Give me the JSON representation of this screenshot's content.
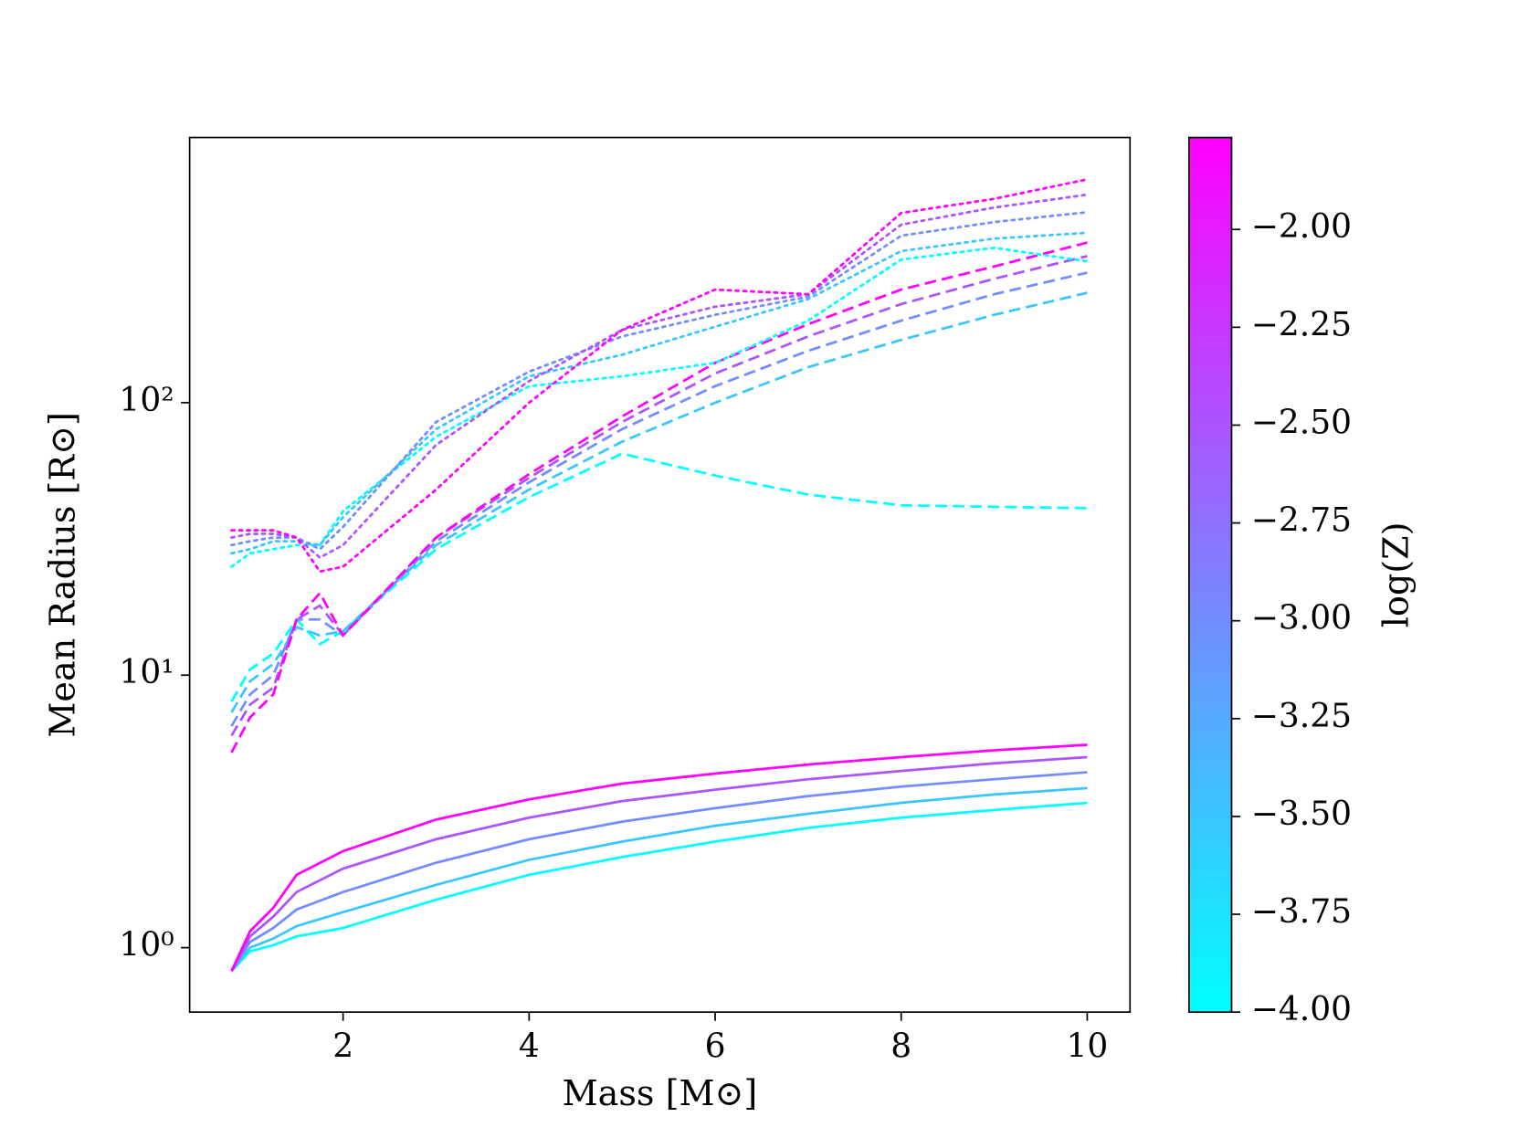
{
  "chart_data": {
    "type": "line",
    "xlabel": "Mass [M⊙]",
    "ylabel": "Mean Radius [R⊙]",
    "xlim": [
      0.35,
      10.46
    ],
    "xticks": [
      2,
      4,
      6,
      8,
      10
    ],
    "ylim": [
      0.58,
      940
    ],
    "yscale": "log",
    "yticks": [
      {
        "value": 1,
        "label": "10⁰"
      },
      {
        "value": 10,
        "label": "10¹"
      },
      {
        "value": 100,
        "label": "10²"
      }
    ],
    "grid": false,
    "colorbar": {
      "label": "log(Z)",
      "lim": [
        -4.0,
        -1.765
      ],
      "cmap": [
        "#00ffff",
        "#ff00ff"
      ],
      "ticks": [
        {
          "value": -4.0,
          "label": "−4.00"
        },
        {
          "value": -3.75,
          "label": "−3.75"
        },
        {
          "value": -3.5,
          "label": "−3.50"
        },
        {
          "value": -3.25,
          "label": "−3.25"
        },
        {
          "value": -3.0,
          "label": "−3.00"
        },
        {
          "value": -2.75,
          "label": "−2.75"
        },
        {
          "value": -2.5,
          "label": "−2.50"
        },
        {
          "value": -2.25,
          "label": "−2.25"
        },
        {
          "value": -2.0,
          "label": "−2.00"
        }
      ]
    },
    "series": [
      {
        "color": "#00ffff",
        "linestyle": "solid",
        "x": [
          0.8,
          1,
          1.25,
          1.5,
          2,
          3,
          4,
          5,
          6,
          7,
          8,
          9,
          10
        ],
        "values": [
          0.82,
          0.97,
          1.02,
          1.1,
          1.18,
          1.5,
          1.85,
          2.15,
          2.45,
          2.75,
          3.0,
          3.2,
          3.4
        ]
      },
      {
        "color": "#39c6ff",
        "linestyle": "solid",
        "x": [
          0.8,
          1,
          1.25,
          1.5,
          2,
          3,
          4,
          5,
          6,
          7,
          8,
          9,
          10
        ],
        "values": [
          0.82,
          1.0,
          1.08,
          1.2,
          1.35,
          1.7,
          2.1,
          2.45,
          2.8,
          3.1,
          3.4,
          3.65,
          3.85
        ]
      },
      {
        "color": "#728dff",
        "linestyle": "solid",
        "x": [
          0.8,
          1,
          1.25,
          1.5,
          2,
          3,
          4,
          5,
          6,
          7,
          8,
          9,
          10
        ],
        "values": [
          0.82,
          1.05,
          1.18,
          1.38,
          1.6,
          2.05,
          2.5,
          2.9,
          3.25,
          3.6,
          3.9,
          4.15,
          4.4
        ]
      },
      {
        "color": "#ab54ff",
        "linestyle": "solid",
        "x": [
          0.8,
          1,
          1.25,
          1.5,
          2,
          3,
          4,
          5,
          6,
          7,
          8,
          9,
          10
        ],
        "values": [
          0.82,
          1.1,
          1.3,
          1.6,
          1.95,
          2.5,
          3.0,
          3.45,
          3.8,
          4.15,
          4.45,
          4.75,
          5.0
        ]
      },
      {
        "color": "#ff00ff",
        "linestyle": "solid",
        "x": [
          0.8,
          1,
          1.25,
          1.5,
          2,
          3,
          4,
          5,
          6,
          7,
          8,
          9,
          10
        ],
        "values": [
          0.82,
          1.15,
          1.4,
          1.85,
          2.26,
          2.95,
          3.5,
          4.0,
          4.35,
          4.7,
          5.0,
          5.3,
          5.55
        ]
      },
      {
        "color": "#00ffff",
        "linestyle": "dashed",
        "x": [
          0.8,
          1,
          1.25,
          1.5,
          1.75,
          2,
          3,
          4,
          5,
          6,
          7,
          8,
          9,
          10
        ],
        "values": [
          8,
          10.5,
          12,
          16,
          13,
          14.5,
          29,
          45,
          65,
          54,
          46,
          42,
          41.5,
          41
        ]
      },
      {
        "color": "#39c6ff",
        "linestyle": "dashed",
        "x": [
          0.8,
          1,
          1.25,
          1.5,
          1.75,
          2,
          3,
          4,
          5,
          6,
          7,
          8,
          9,
          10
        ],
        "values": [
          7.3,
          9.5,
          11,
          15,
          14,
          14.5,
          30,
          48,
          72,
          100,
          135,
          170,
          210,
          253
        ]
      },
      {
        "color": "#728dff",
        "linestyle": "dashed",
        "x": [
          0.8,
          1,
          1.25,
          1.5,
          1.75,
          2,
          3,
          4,
          5,
          6,
          7,
          8,
          9,
          10
        ],
        "values": [
          6.5,
          8.5,
          10,
          16,
          16,
          14,
          31,
          51,
          80,
          115,
          155,
          200,
          250,
          300
        ]
      },
      {
        "color": "#ab54ff",
        "linestyle": "dashed",
        "x": [
          0.8,
          1,
          1.25,
          1.5,
          1.75,
          2,
          3,
          4,
          5,
          6,
          7,
          8,
          9,
          10
        ],
        "values": [
          6,
          7.8,
          9,
          16,
          18,
          14,
          32,
          53,
          85,
          128,
          175,
          230,
          285,
          345
        ]
      },
      {
        "color": "#ff00ff",
        "linestyle": "dashed",
        "x": [
          0.8,
          1,
          1.25,
          1.5,
          1.75,
          2,
          3,
          4,
          5,
          6,
          7,
          8,
          9,
          10
        ],
        "values": [
          5.2,
          7,
          8.5,
          16,
          20,
          14,
          32,
          54.7,
          89,
          140,
          194,
          260,
          316,
          387
        ]
      },
      {
        "color": "#00ffff",
        "linestyle": "dotted",
        "x": [
          0.8,
          1,
          1.25,
          1.5,
          1.75,
          2,
          3,
          4,
          5,
          6,
          7,
          8,
          9,
          10
        ],
        "values": [
          25,
          28,
          29,
          30,
          30,
          40,
          75,
          115,
          125,
          140,
          200,
          335,
          370,
          330
        ]
      },
      {
        "color": "#39c6ff",
        "linestyle": "dotted",
        "x": [
          0.8,
          1,
          1.25,
          1.5,
          1.75,
          2,
          3,
          4,
          5,
          6,
          7,
          8,
          9,
          10
        ],
        "values": [
          28,
          29,
          31,
          31,
          30,
          38,
          80,
          125,
          150,
          190,
          240,
          360,
          400,
          420
        ]
      },
      {
        "color": "#728dff",
        "linestyle": "dotted",
        "x": [
          0.8,
          1,
          1.25,
          1.5,
          1.75,
          2,
          3,
          4,
          5,
          6,
          7,
          8,
          9,
          10
        ],
        "values": [
          30,
          31,
          32,
          32,
          29,
          35,
          85,
          130,
          175,
          210,
          245,
          410,
          460,
          500
        ]
      },
      {
        "color": "#ab54ff",
        "linestyle": "dotted",
        "x": [
          0.8,
          1,
          1.25,
          1.5,
          1.75,
          2,
          3,
          4,
          5,
          6,
          7,
          8,
          9,
          10
        ],
        "values": [
          32,
          33,
          33,
          32,
          27,
          30,
          70,
          120,
          185,
          225,
          250,
          450,
          520,
          580
        ]
      },
      {
        "color": "#ff00ff",
        "linestyle": "dotted",
        "x": [
          0.8,
          1,
          1.25,
          1.5,
          1.75,
          2,
          3,
          4,
          5,
          6,
          7,
          8,
          9,
          10
        ],
        "values": [
          34,
          34,
          34,
          32,
          24,
          25,
          48,
          100,
          185,
          260,
          250,
          497,
          560,
          660
        ]
      }
    ]
  }
}
